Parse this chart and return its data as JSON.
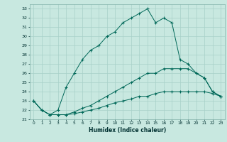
{
  "xlabel": "Humidex (Indice chaleur)",
  "bg_color": "#c8e8e0",
  "grid_color": "#a8d0c8",
  "line_color": "#006858",
  "xlim": [
    -0.5,
    23.5
  ],
  "ylim": [
    21,
    33.5
  ],
  "xticks": [
    0,
    1,
    2,
    3,
    4,
    5,
    6,
    7,
    8,
    9,
    10,
    11,
    12,
    13,
    14,
    15,
    16,
    17,
    18,
    19,
    20,
    21,
    22,
    23
  ],
  "yticks": [
    21,
    22,
    23,
    24,
    25,
    26,
    27,
    28,
    29,
    30,
    31,
    32,
    33
  ],
  "series": [
    [
      23.0,
      22.0,
      21.5,
      22.0,
      24.5,
      26.0,
      27.5,
      28.5,
      29.0,
      30.0,
      30.5,
      31.5,
      32.0,
      32.5,
      33.0,
      31.5,
      32.0,
      31.5,
      27.5,
      27.0,
      26.0,
      25.5,
      24.0,
      23.5
    ],
    [
      23.0,
      22.0,
      21.5,
      21.5,
      21.5,
      21.8,
      22.2,
      22.5,
      23.0,
      23.5,
      24.0,
      24.5,
      25.0,
      25.5,
      26.0,
      26.0,
      26.5,
      26.5,
      26.5,
      26.5,
      26.0,
      25.5,
      24.0,
      23.5
    ],
    [
      23.0,
      22.0,
      21.5,
      21.5,
      21.5,
      21.6,
      21.8,
      22.0,
      22.2,
      22.5,
      22.8,
      23.0,
      23.2,
      23.5,
      23.5,
      23.8,
      24.0,
      24.0,
      24.0,
      24.0,
      24.0,
      24.0,
      23.8,
      23.5
    ]
  ]
}
